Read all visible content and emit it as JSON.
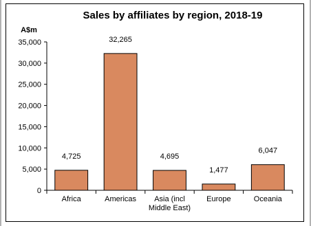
{
  "chart_data": {
    "type": "bar",
    "title": "Sales by affiliates by region, 2018-19",
    "ylabel": "A$m",
    "xlabel": "",
    "categories": [
      [
        "Africa"
      ],
      [
        "Americas"
      ],
      [
        "Asia (incl",
        "Middle East)"
      ],
      [
        "Europe"
      ],
      [
        "Oceania"
      ]
    ],
    "values": [
      4725,
      32265,
      4695,
      1477,
      6047
    ],
    "value_labels": [
      "4,725",
      "32,265",
      "4,695",
      "1,477",
      "6,047"
    ],
    "ylim": [
      0,
      35000
    ],
    "yticks": [
      0,
      5000,
      10000,
      15000,
      20000,
      25000,
      30000,
      35000
    ],
    "ytick_labels": [
      "0",
      "5,000",
      "10,000",
      "15,000",
      "20,000",
      "25,000",
      "30,000",
      "35,000"
    ],
    "grid": false,
    "legend": "none",
    "bar_color": "#d9895f",
    "bar_edge_color": "#000000"
  }
}
